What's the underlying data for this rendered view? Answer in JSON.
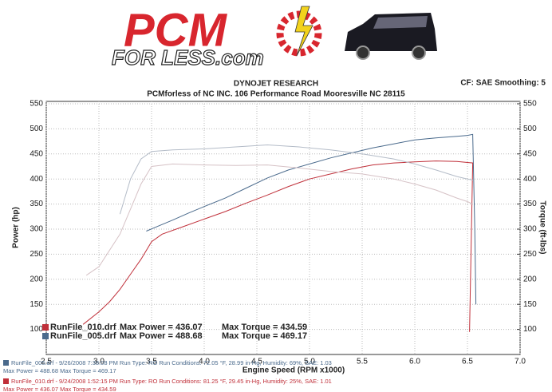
{
  "header": {
    "logo_top": "PCM",
    "logo_bottom": "FOR LESS.com",
    "company": "DYNOJET RESEARCH",
    "address": "PCMforless of NC INC. 106 Performance Road Mooresville NC 28115",
    "settings": "CF: SAE  Smoothing: 5"
  },
  "chart_data": {
    "type": "line",
    "x_label": "Engine Speed (RPM x1000)",
    "y_label": "Power (hp)",
    "y2_label": "Torque (ft-lbs)",
    "xlim": [
      2.5,
      7.0
    ],
    "xticks": [
      2.5,
      {
        "value": 3,
        "label": "3.0"
      },
      3.5,
      {
        "value": 4,
        "label": "4.0"
      },
      4.5,
      {
        "value": 5,
        "label": "5.0"
      },
      5.5,
      {
        "value": 6,
        "label": "6.0"
      },
      6.5,
      {
        "value": 7,
        "label": "7.0"
      }
    ],
    "ylim": [
      50,
      550
    ],
    "yticks": [
      100,
      150,
      200,
      250,
      300,
      350,
      400,
      450,
      500,
      550
    ],
    "y2lim": [
      50,
      550
    ],
    "y2ticks": [
      100,
      150,
      200,
      250,
      300,
      350,
      400,
      450,
      500,
      550
    ],
    "grid": true,
    "series": [
      {
        "color": "#4a6a8c",
        "x": [
          3.45,
          3.55,
          3.7,
          3.85,
          4.0,
          4.2,
          4.4,
          4.6,
          4.8,
          5.0,
          5.2,
          5.4,
          5.6,
          5.8,
          6.0,
          6.2,
          6.4,
          6.5,
          6.55,
          6.57,
          6.58
        ],
        "values": [
          296,
          305,
          318,
          332,
          345,
          362,
          382,
          402,
          418,
          430,
          442,
          452,
          462,
          470,
          478,
          482,
          485,
          487,
          489,
          300,
          150
        ]
      },
      {
        "color": "#c0303a",
        "x": [
          2.85,
          3.0,
          3.1,
          3.2,
          3.3,
          3.4,
          3.5,
          3.6,
          3.8,
          4.0,
          4.2,
          4.4,
          4.6,
          4.8,
          5.0,
          5.2,
          5.4,
          5.6,
          5.8,
          6.0,
          6.2,
          6.4,
          6.5,
          6.55,
          6.52
        ],
        "values": [
          110,
          135,
          155,
          180,
          210,
          240,
          275,
          290,
          305,
          320,
          335,
          352,
          368,
          385,
          400,
          410,
          420,
          428,
          432,
          434,
          436,
          435,
          433,
          432,
          95
        ]
      },
      {
        "color": "#b4bcc8",
        "axis": "y2",
        "x": [
          3.2,
          3.3,
          3.4,
          3.5,
          3.7,
          4.0,
          4.3,
          4.6,
          4.9,
          5.2,
          5.5,
          5.8,
          6.0,
          6.2,
          6.4,
          6.5,
          6.55
        ],
        "values": [
          330,
          400,
          440,
          455,
          458,
          460,
          464,
          468,
          464,
          458,
          450,
          440,
          430,
          418,
          405,
          400,
          398
        ]
      },
      {
        "color": "#d6c2c6",
        "axis": "y2",
        "x": [
          2.88,
          3.0,
          3.2,
          3.4,
          3.5,
          3.7,
          4.0,
          4.3,
          4.6,
          4.9,
          5.2,
          5.5,
          5.8,
          6.0,
          6.2,
          6.4,
          6.5,
          6.55
        ],
        "values": [
          208,
          225,
          290,
          390,
          425,
          430,
          428,
          427,
          428,
          422,
          415,
          410,
          400,
          390,
          378,
          362,
          355,
          350
        ]
      }
    ],
    "legend": [
      {
        "color": "#c0303a",
        "file": "RunFile_010.drf",
        "power": "Max Power = 436.07",
        "torque": "Max Torque = 434.59"
      },
      {
        "color": "#4a6a8c",
        "file": "RunFile_005.drf",
        "power": "Max Power = 488.68",
        "torque": "Max Torque = 469.17"
      }
    ],
    "runs": [
      {
        "color": "#4a6a8c",
        "line1": "RunFile_005.drf - 9/26/2008 7:38:08 PM  Run Type: RO  Run Conditions: 72.05 °F, 28.99 in-Hg,  Humidity: 69%, SAE: 1.03",
        "line2": "Max Power = 488.68  Max Torque = 469.17"
      },
      {
        "color": "#c0303a",
        "line1": "RunFile_010.drf - 9/24/2008 1:52:15 PM  Run Type: RO  Run Conditions: 81.25 °F, 29.45 in-Hg,  Humidity: 25%, SAE: 1.01",
        "line2": "Max Power = 436.07  Max Torque = 434.59"
      }
    ]
  }
}
